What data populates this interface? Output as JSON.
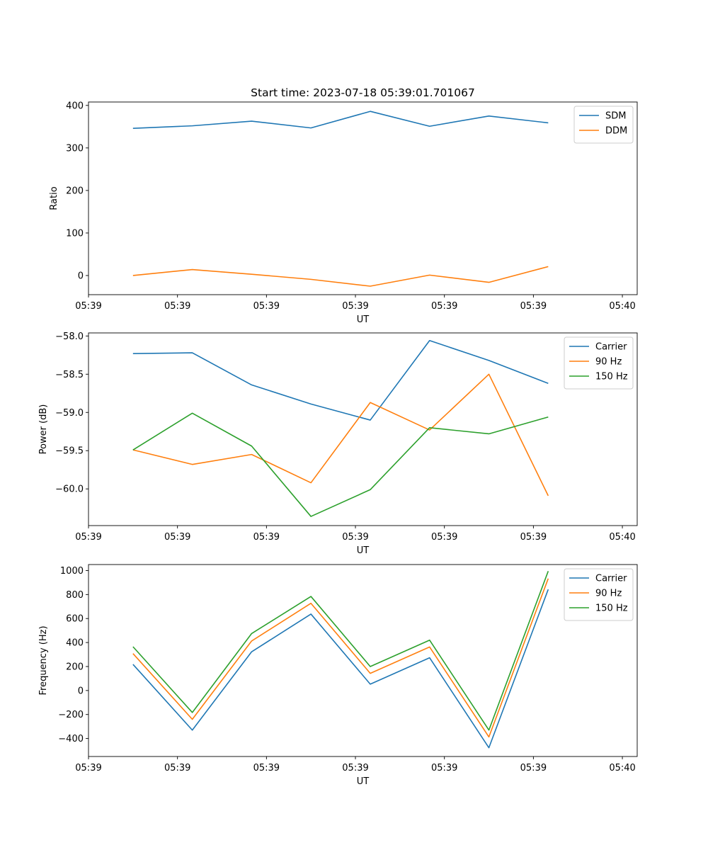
{
  "figure_title": "Start time: 2023-07-18 05:39:01.701067",
  "colors": {
    "blue": "#1f77b4",
    "orange": "#ff7f0e",
    "green": "#2ca02c"
  },
  "chart_data": [
    {
      "type": "line",
      "title": "Start time: 2023-07-18 05:39:01.701067",
      "xlabel": "UT",
      "ylabel": "Ratio",
      "x": [
        0,
        1,
        2,
        3,
        4,
        5,
        6,
        7
      ],
      "xlim": [
        -0.75,
        8.5
      ],
      "xticks": [
        -0.75,
        0.75,
        2.25,
        3.75,
        5.25,
        6.75,
        8.25
      ],
      "xticklabels": [
        "05:39",
        "05:39",
        "05:39",
        "05:39",
        "05:39",
        "05:39",
        "05:40"
      ],
      "ylim": [
        -45,
        408
      ],
      "yticks": [
        0,
        100,
        200,
        300,
        400
      ],
      "yticklabels": [
        "0",
        "100",
        "200",
        "300",
        "400"
      ],
      "legend_loc": "top-right",
      "series": [
        {
          "name": "SDM",
          "color": "#1f77b4",
          "values": [
            346,
            352,
            363,
            347,
            386,
            351,
            375,
            359
          ]
        },
        {
          "name": "DDM",
          "color": "#ff7f0e",
          "values": [
            0,
            14,
            3,
            -9,
            -25,
            1,
            -16,
            21
          ]
        }
      ]
    },
    {
      "type": "line",
      "title": "",
      "xlabel": "UT",
      "ylabel": "Power (dB)",
      "x": [
        0,
        1,
        2,
        3,
        4,
        5,
        6,
        7
      ],
      "xlim": [
        -0.75,
        8.5
      ],
      "xticks": [
        -0.75,
        0.75,
        2.25,
        3.75,
        5.25,
        6.75,
        8.25
      ],
      "xticklabels": [
        "05:39",
        "05:39",
        "05:39",
        "05:39",
        "05:39",
        "05:39",
        "05:40"
      ],
      "ylim": [
        -60.48,
        -57.96
      ],
      "yticks": [
        -60.0,
        -59.5,
        -59.0,
        -58.5,
        -58.0
      ],
      "yticklabels": [
        "−60.0",
        "−59.5",
        "−59.0",
        "−58.5",
        "−58.0"
      ],
      "legend_loc": "top-right",
      "series": [
        {
          "name": "Carrier",
          "color": "#1f77b4",
          "values": [
            -58.23,
            -58.22,
            -58.64,
            -58.89,
            -59.1,
            -58.06,
            -58.32,
            -58.62
          ]
        },
        {
          "name": "90 Hz",
          "color": "#ff7f0e",
          "values": [
            -59.49,
            -59.68,
            -59.55,
            -59.92,
            -58.87,
            -59.23,
            -58.5,
            -60.09
          ]
        },
        {
          "name": "150 Hz",
          "color": "#2ca02c",
          "values": [
            -59.49,
            -59.01,
            -59.44,
            -60.36,
            -60.01,
            -59.2,
            -59.28,
            -59.06
          ]
        }
      ]
    },
    {
      "type": "line",
      "title": "",
      "xlabel": "UT",
      "ylabel": "Frequency (Hz)",
      "x": [
        0,
        1,
        2,
        3,
        4,
        5,
        6,
        7
      ],
      "xlim": [
        -0.75,
        8.5
      ],
      "xticks": [
        -0.75,
        0.75,
        2.25,
        3.75,
        5.25,
        6.75,
        8.25
      ],
      "xticklabels": [
        "05:39",
        "05:39",
        "05:39",
        "05:39",
        "05:39",
        "05:39",
        "05:40"
      ],
      "ylim": [
        -550,
        1050
      ],
      "yticks": [
        -400,
        -200,
        0,
        200,
        400,
        600,
        800,
        1000
      ],
      "yticklabels": [
        "−400",
        "−200",
        "0",
        "200",
        "400",
        "600",
        "800",
        "1000"
      ],
      "legend_loc": "top-right",
      "series": [
        {
          "name": "Carrier",
          "color": "#1f77b4",
          "values": [
            218,
            -330,
            323,
            637,
            53,
            273,
            -477,
            843
          ]
        },
        {
          "name": "90 Hz",
          "color": "#ff7f0e",
          "values": [
            308,
            -240,
            413,
            727,
            143,
            363,
            -387,
            933
          ]
        },
        {
          "name": "150 Hz",
          "color": "#2ca02c",
          "values": [
            365,
            -183,
            475,
            784,
            200,
            420,
            -330,
            995
          ]
        }
      ]
    }
  ]
}
